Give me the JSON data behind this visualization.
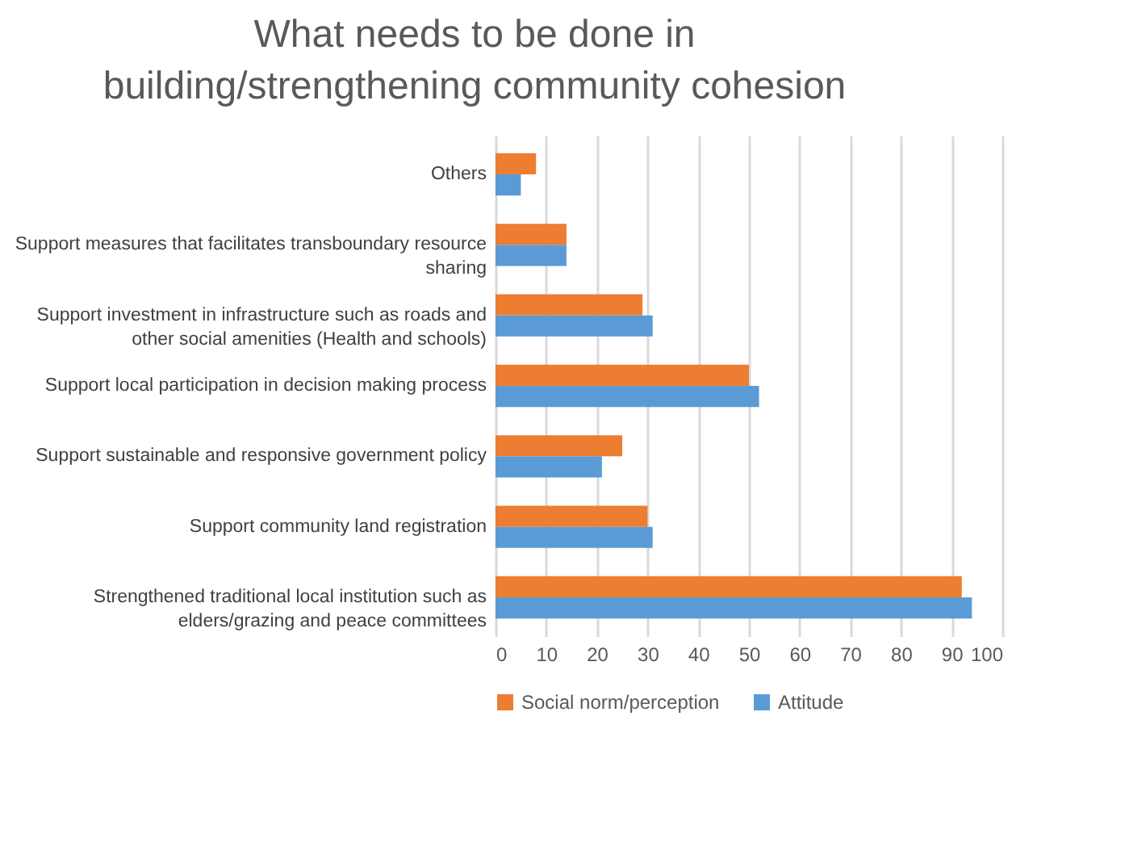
{
  "chart_data": {
    "type": "bar",
    "orientation": "horizontal",
    "title": "What needs to be done in building/strengthening community cohesion",
    "categories": [
      "Others",
      "Support measures that facilitates transboundary resource sharing",
      "Support investment in infrastructure such as roads and other social amenities (Health and schools)",
      "Support local participation in decision making process",
      "Support sustainable and responsive government policy",
      "Support community land registration",
      "Strengthened traditional local institution such as elders/grazing and peace committees"
    ],
    "series": [
      {
        "name": "Social norm/perception",
        "color": "#ed7d31",
        "values": [
          8,
          14,
          29,
          50,
          25,
          30,
          92
        ]
      },
      {
        "name": "Attitude",
        "color": "#5b9bd5",
        "values": [
          5,
          14,
          31,
          52,
          21,
          31,
          94
        ]
      }
    ],
    "xlim": [
      0,
      100
    ],
    "xticks": [
      0,
      10,
      20,
      30,
      40,
      50,
      60,
      70,
      80,
      90,
      100
    ],
    "grid": "x",
    "legend": "bottom"
  }
}
